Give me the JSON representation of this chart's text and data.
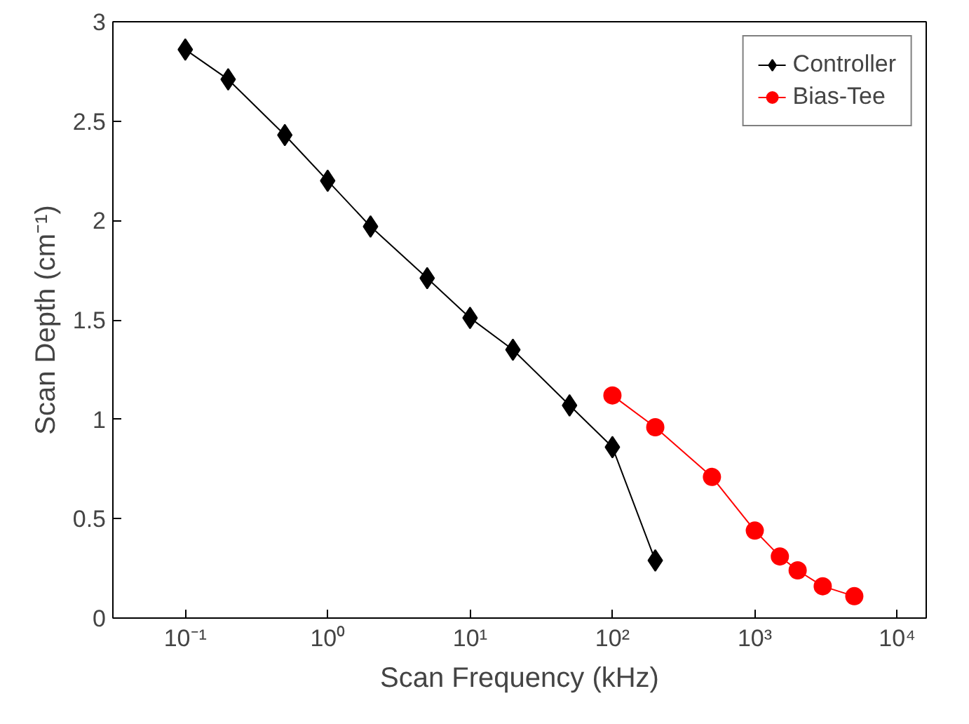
{
  "chart_data": {
    "type": "line",
    "xlabel": "Scan Frequency (kHz)",
    "ylabel": "Scan Depth (cm⁻¹)",
    "log": "x",
    "grid": false,
    "legend": "top right",
    "xlim": [
      0.031,
      16000
    ],
    "ylim": [
      0,
      3
    ],
    "xticks": [
      {
        "value": 0.1,
        "label": "10⁻¹"
      },
      {
        "value": 1,
        "label": "10⁰"
      },
      {
        "value": 10,
        "label": "10¹"
      },
      {
        "value": 100,
        "label": "10²"
      },
      {
        "value": 1000,
        "label": "10³"
      },
      {
        "value": 10000,
        "label": "10⁴"
      }
    ],
    "yticks": [
      0,
      {
        "value": 0.5,
        "label": "0.5"
      },
      1,
      {
        "value": 1.5,
        "label": "1.5"
      },
      2,
      {
        "value": 2.5,
        "label": "2.5"
      },
      3
    ],
    "series": [
      {
        "name": "Controller",
        "color": "#000000",
        "marker": "diamond",
        "x": [
          0.1,
          0.2,
          0.5,
          1,
          2,
          5,
          10,
          20,
          50,
          100,
          200
        ],
        "values": [
          2.86,
          2.71,
          2.43,
          2.2,
          1.97,
          1.71,
          1.51,
          1.35,
          1.07,
          0.86,
          0.29
        ]
      },
      {
        "name": "Bias-Tee",
        "color": "#ff0000",
        "marker": "circle",
        "x": [
          100,
          200,
          500,
          1000,
          1500,
          2000,
          3000,
          5000
        ],
        "values": [
          1.12,
          0.96,
          0.71,
          0.44,
          0.31,
          0.24,
          0.16,
          0.11
        ]
      }
    ]
  }
}
